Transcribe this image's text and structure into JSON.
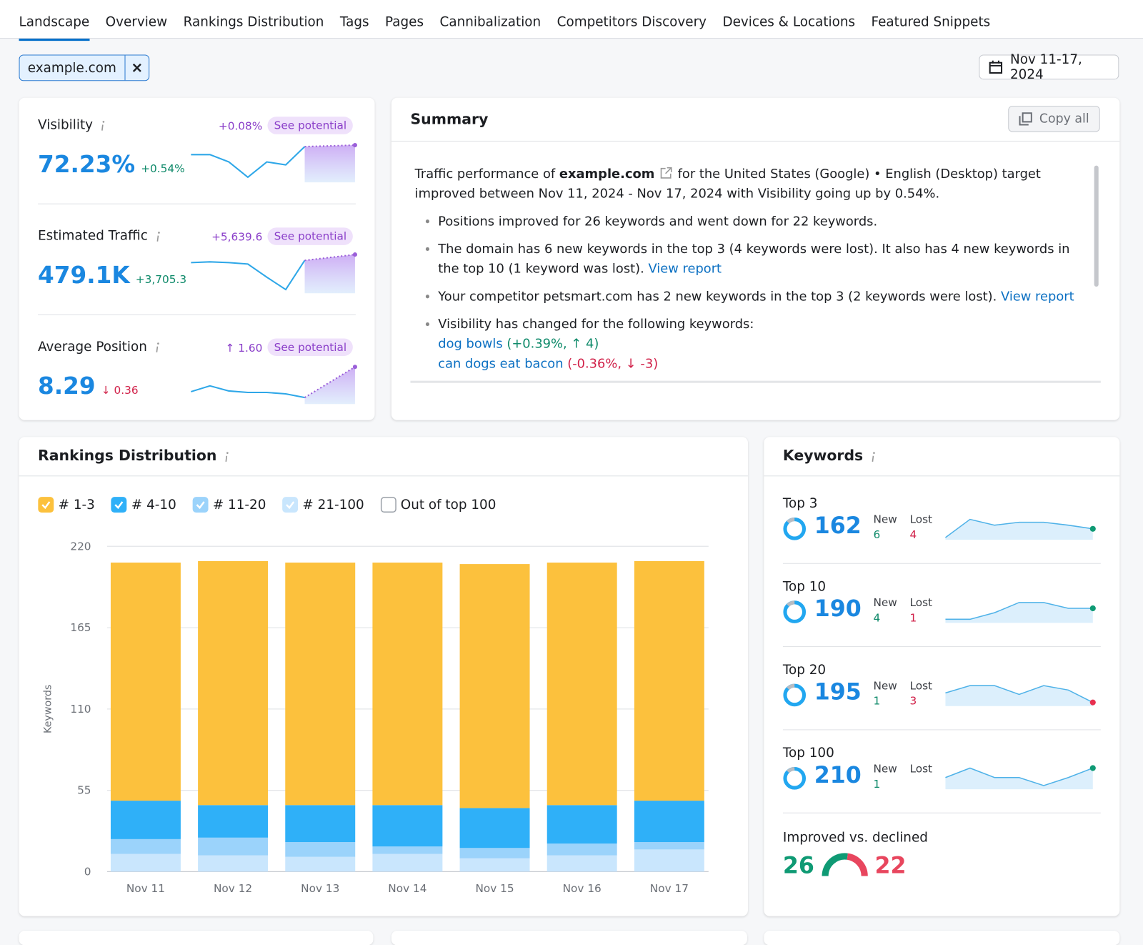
{
  "tabs": [
    "Landscape",
    "Overview",
    "Rankings Distribution",
    "Tags",
    "Pages",
    "Cannibalization",
    "Competitors Discovery",
    "Devices & Locations",
    "Featured Snippets"
  ],
  "domain_filter": "example.com",
  "date_range": "Nov 11-17, 2024",
  "metrics": [
    {
      "label": "Visibility",
      "potential_change": "+0.08%",
      "potential": "See potential",
      "value": "72.23%",
      "delta": "+0.54%",
      "delta_color": "#0f8a6a",
      "trend": [
        38,
        38,
        28,
        7,
        28,
        24,
        49
      ],
      "potential_trend": 51
    },
    {
      "label": "Estimated Traffic",
      "potential_change": "+5,639.6",
      "potential": "See potential",
      "value": "479.1K",
      "delta": "+3,705.3",
      "delta_color": "#0f8a6a",
      "trend": [
        42,
        43,
        42,
        40,
        22,
        5,
        45
      ],
      "potential_trend": 53
    },
    {
      "label": "Average Position",
      "potential_change": "↑ 1.60",
      "potential": "See potential",
      "value": "8.29",
      "delta": "↓ 0.36",
      "delta_color": "#d1224a",
      "trend": [
        17,
        25,
        18,
        16,
        16,
        14,
        9
      ],
      "potential_trend": 51
    }
  ],
  "summary": {
    "title": "Summary",
    "copy": "Copy all",
    "intro_pre": "Traffic performance of ",
    "intro_domain": "example.com",
    "intro_post": " for the United States (Google) • English (Desktop) target improved between Nov 11, 2024 - Nov 17, 2024 with Visibility going up by 0.54%.",
    "bullets": [
      {
        "text": "Positions improved for 26 keywords and went down for 22 keywords."
      },
      {
        "text": "The domain has 6 new keywords in the top 3 (4 keywords were lost). It also has 4 new keywords in the top 10 (1 keyword was lost).",
        "link": "View report"
      },
      {
        "text": "Your competitor petsmart.com has 2 new keywords in the top 3 (2 keywords were lost).",
        "link": "View report"
      },
      {
        "text": "Visibility has changed for the following keywords:",
        "keywords": [
          {
            "keyword": "dog bowls",
            "change": "+0.39%",
            "position": "↑ 4",
            "color": "#0f8a6a"
          },
          {
            "keyword": "can dogs eat bacon",
            "change": "-0.36%",
            "position": "↓ -3",
            "color": "#d1224a"
          }
        ]
      }
    ]
  },
  "chart_data": {
    "type": "bar",
    "stacked": true,
    "title": "Rankings Distribution",
    "y_label": "Keywords",
    "categories": [
      "Nov 11",
      "Nov 12",
      "Nov 13",
      "Nov 14",
      "Nov 15",
      "Nov 16",
      "Nov 17"
    ],
    "series": [
      {
        "name": "# 1-3",
        "color": "#fcc13d",
        "values": [
          161,
          165,
          164,
          164,
          165,
          164,
          162
        ]
      },
      {
        "name": "# 4-10",
        "color": "#2fb0f8",
        "values": [
          26,
          22,
          25,
          28,
          27,
          26,
          28
        ]
      },
      {
        "name": "# 11-20",
        "color": "#9bd3fb",
        "values": [
          10,
          12,
          10,
          5,
          7,
          8,
          5
        ]
      },
      {
        "name": "# 21-100",
        "color": "#c9e6fd",
        "values": [
          12,
          11,
          10,
          12,
          9,
          11,
          15
        ]
      }
    ],
    "hidden_series": [
      {
        "name": "Out of top 100"
      }
    ],
    "ylim": [
      0,
      220
    ],
    "yticks": [
      0,
      55,
      110,
      165,
      220
    ],
    "grid": true
  },
  "keywords": {
    "title": "Keywords",
    "new_label": "New",
    "lost_label": "Lost",
    "rows": [
      {
        "label": "Top 3",
        "value": 162,
        "new": 6,
        "lost": 4,
        "trend": [
          3,
          28,
          20,
          24,
          24,
          20,
          15
        ],
        "end_color": "#0f9a74"
      },
      {
        "label": "Top 10",
        "value": 190,
        "new": 4,
        "lost": 1,
        "trend": [
          5,
          5,
          14,
          28,
          28,
          20,
          20
        ],
        "end_color": "#0f9a74"
      },
      {
        "label": "Top 20",
        "value": 195,
        "new": 1,
        "lost": 3,
        "trend": [
          18,
          28,
          28,
          16,
          28,
          22,
          5
        ],
        "end_color": "#e8304f"
      },
      {
        "label": "Top 100",
        "value": 210,
        "new": 1,
        "trend": [
          16,
          29,
          16,
          16,
          5,
          16,
          29
        ],
        "end_color": "#0f9a74"
      }
    ],
    "improved_label": "Improved vs. declined",
    "improved": 26,
    "declined": 22,
    "improved_color": "#0f9a74",
    "declined_color": "#e8465e"
  }
}
